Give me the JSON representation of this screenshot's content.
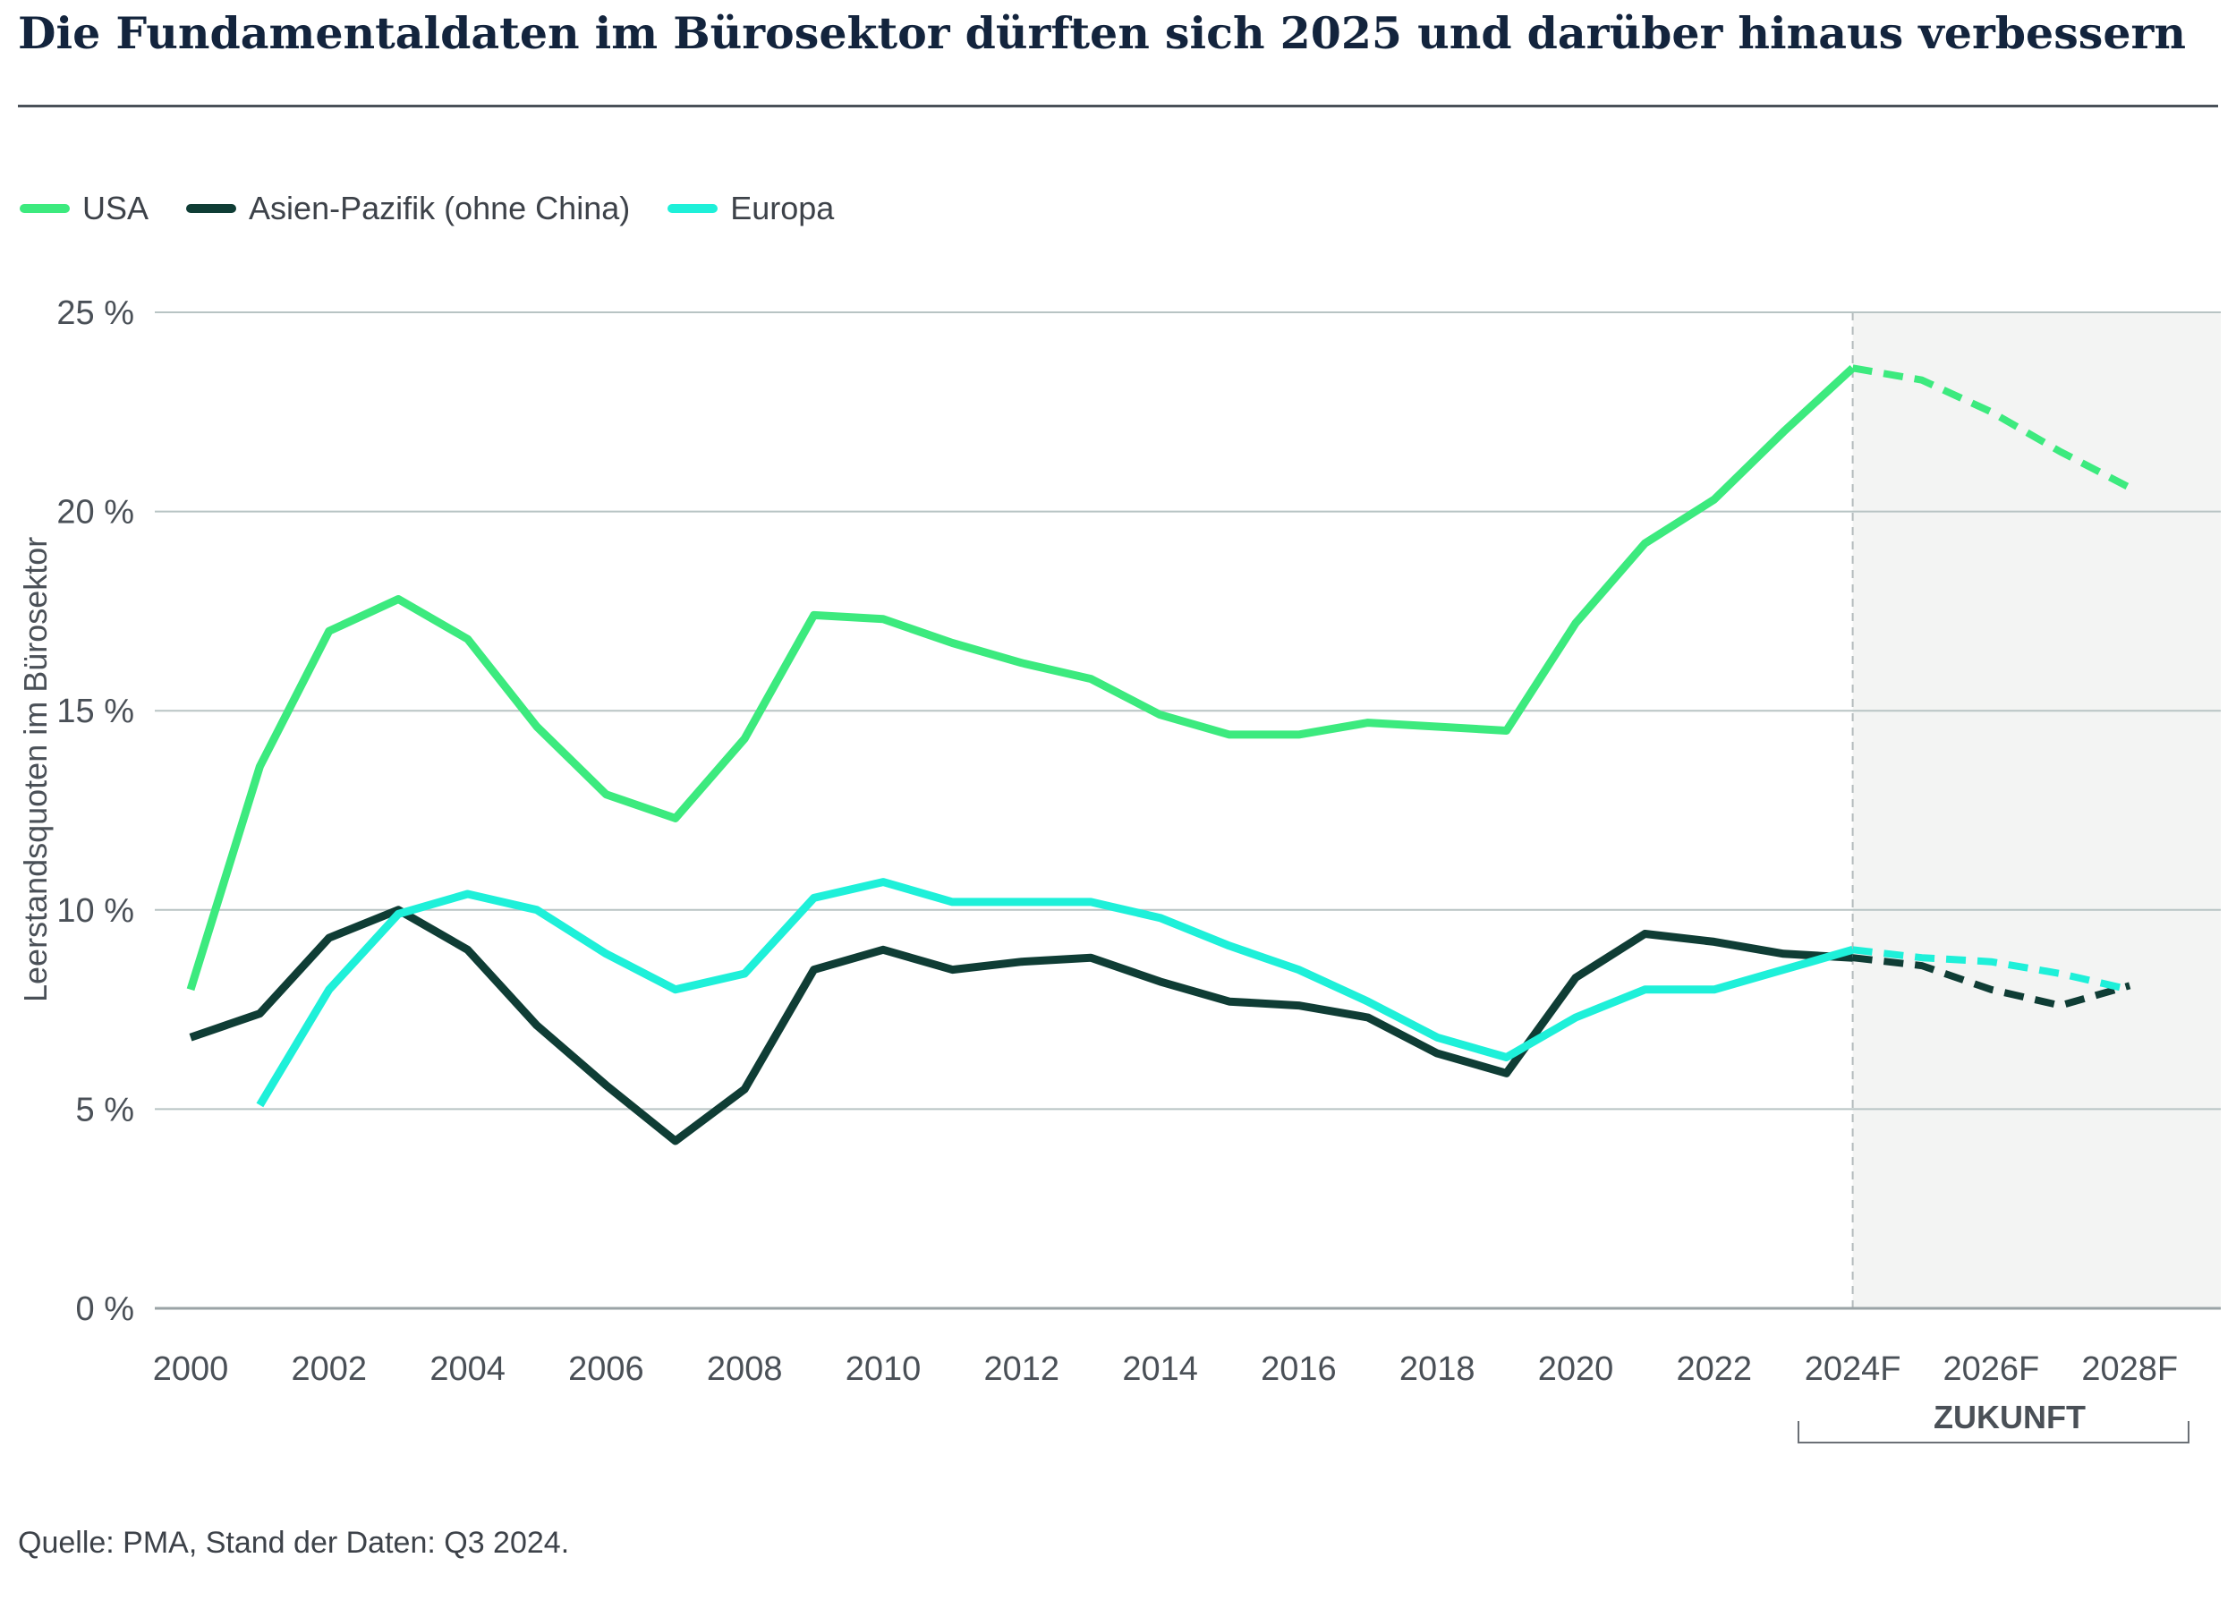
{
  "title": "Die Fundamentaldaten im Bürosektor dürften sich 2025 und darüber hinaus verbessern",
  "source": "Quelle: PMA, Stand der Daten: Q3 2024.",
  "chart_data": {
    "type": "line",
    "ylabel": "Leerstandsquoten im Bürosektor",
    "ylim": [
      0,
      25
    ],
    "y_ticks": [
      {
        "value": 0,
        "label": "0 %"
      },
      {
        "value": 5,
        "label": "5 %"
      },
      {
        "value": 10,
        "label": "10 %"
      },
      {
        "value": 15,
        "label": "15 %"
      },
      {
        "value": 20,
        "label": "20 %"
      },
      {
        "value": 25,
        "label": "25 %"
      }
    ],
    "xlim": [
      2000,
      2029.5
    ],
    "x_ticks": [
      {
        "value": 2000,
        "label": "2000"
      },
      {
        "value": 2002,
        "label": "2002"
      },
      {
        "value": 2004,
        "label": "2004"
      },
      {
        "value": 2006,
        "label": "2006"
      },
      {
        "value": 2008,
        "label": "2008"
      },
      {
        "value": 2010,
        "label": "2010"
      },
      {
        "value": 2012,
        "label": "2012"
      },
      {
        "value": 2014,
        "label": "2014"
      },
      {
        "value": 2016,
        "label": "2016"
      },
      {
        "value": 2018,
        "label": "2018"
      },
      {
        "value": 2020,
        "label": "2020"
      },
      {
        "value": 2022,
        "label": "2022"
      },
      {
        "value": 2024,
        "label": "2024F"
      },
      {
        "value": 2026,
        "label": "2026F"
      },
      {
        "value": 2028,
        "label": "2028F"
      }
    ],
    "forecast_start": 2024,
    "forecast_label": "ZUKUNFT",
    "series": [
      {
        "name": "USA",
        "color": "#3cea7e",
        "x": [
          2000,
          2001,
          2002,
          2003,
          2004,
          2005,
          2006,
          2007,
          2008,
          2009,
          2010,
          2011,
          2012,
          2013,
          2014,
          2015,
          2016,
          2017,
          2018,
          2019,
          2020,
          2021,
          2022,
          2023,
          2024
        ],
        "values": [
          8.0,
          13.6,
          17.0,
          17.8,
          16.8,
          14.6,
          12.9,
          12.3,
          14.3,
          17.4,
          17.3,
          16.7,
          16.2,
          15.8,
          14.9,
          14.4,
          14.4,
          14.7,
          14.6,
          14.5,
          17.2,
          19.2,
          20.3,
          22.0,
          23.6
        ],
        "forecast_x": [
          2024,
          2025,
          2026,
          2027,
          2028
        ],
        "forecast_values": [
          23.6,
          23.3,
          22.5,
          21.5,
          20.6
        ]
      },
      {
        "name": "Asien-Pazifik (ohne China)",
        "color": "#0f3d35",
        "x": [
          2000,
          2001,
          2002,
          2003,
          2004,
          2005,
          2006,
          2007,
          2008,
          2009,
          2010,
          2011,
          2012,
          2013,
          2014,
          2015,
          2016,
          2017,
          2018,
          2019,
          2020,
          2021,
          2022,
          2023,
          2024
        ],
        "values": [
          6.8,
          7.4,
          9.3,
          10.0,
          9.0,
          7.1,
          5.6,
          4.2,
          5.5,
          8.5,
          9.0,
          8.5,
          8.7,
          8.8,
          8.2,
          7.7,
          7.6,
          7.3,
          6.4,
          5.9,
          8.3,
          9.4,
          9.2,
          8.9,
          8.8
        ],
        "forecast_x": [
          2024,
          2025,
          2026,
          2027,
          2028
        ],
        "forecast_values": [
          8.8,
          8.6,
          8.0,
          7.6,
          8.1
        ]
      },
      {
        "name": "Europa",
        "color": "#1ef0d9",
        "x": [
          2001,
          2002,
          2003,
          2004,
          2005,
          2006,
          2007,
          2008,
          2009,
          2010,
          2011,
          2012,
          2013,
          2014,
          2015,
          2016,
          2017,
          2018,
          2019,
          2020,
          2021,
          2022,
          2023,
          2024
        ],
        "values": [
          5.1,
          8.0,
          9.9,
          10.4,
          10.0,
          8.9,
          8.0,
          8.4,
          10.3,
          10.7,
          10.2,
          10.2,
          10.2,
          9.8,
          9.1,
          8.5,
          7.7,
          6.8,
          6.3,
          7.3,
          8.0,
          8.0,
          8.5,
          9.0
        ],
        "forecast_x": [
          2024,
          2025,
          2026,
          2027,
          2028
        ],
        "forecast_values": [
          9.0,
          8.8,
          8.7,
          8.4,
          8.0
        ]
      }
    ]
  }
}
